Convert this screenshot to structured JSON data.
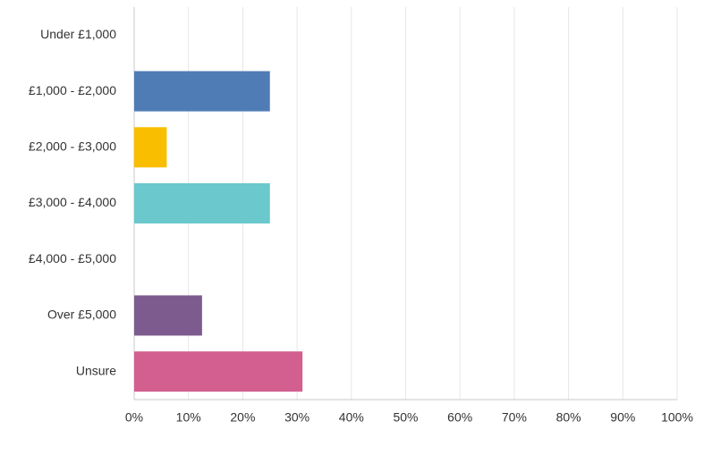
{
  "chart_data": {
    "type": "bar",
    "orientation": "horizontal",
    "categories": [
      "Under £1,000",
      "£1,000 - £2,000",
      "£2,000 - £3,000",
      "£3,000 - £4,000",
      "£4,000 - £5,000",
      "Over £5,000",
      "Unsure"
    ],
    "values": [
      0,
      25,
      6,
      25,
      0,
      12.5,
      31
    ],
    "colors": [
      null,
      "#507cb6",
      "#f9be00",
      "#6bc8cd",
      null,
      "#7d5b8e",
      "#d25f90"
    ],
    "xlim": [
      0,
      100
    ],
    "xticks": [
      {
        "value": 0,
        "label": "0%"
      },
      {
        "value": 10,
        "label": "10%"
      },
      {
        "value": 20,
        "label": "20%"
      },
      {
        "value": 30,
        "label": "30%"
      },
      {
        "value": 40,
        "label": "40%"
      },
      {
        "value": 50,
        "label": "50%"
      },
      {
        "value": 60,
        "label": "60%"
      },
      {
        "value": 70,
        "label": "70%"
      },
      {
        "value": 80,
        "label": "80%"
      },
      {
        "value": 90,
        "label": "90%"
      },
      {
        "value": 100,
        "label": "100%"
      }
    ],
    "grid": true
  }
}
